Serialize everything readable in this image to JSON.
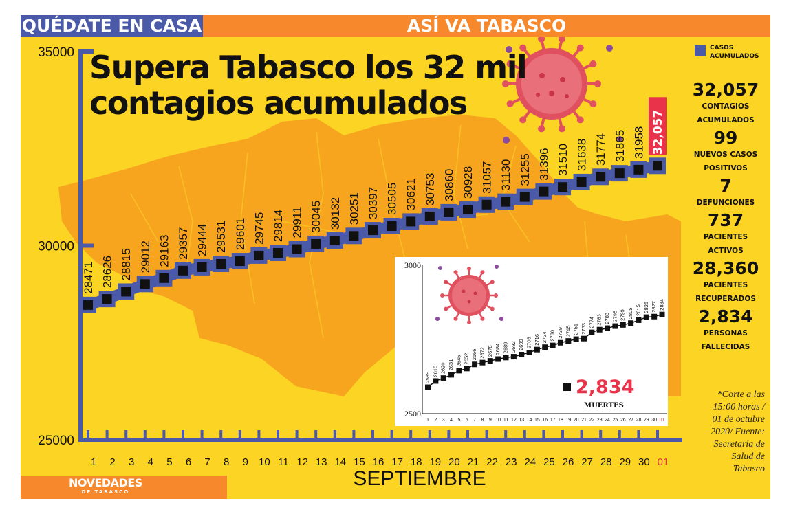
{
  "banner": {
    "left": "QUÉDATE EN CASA",
    "right": "ASÍ VA TABASCO"
  },
  "headline": "Supera Tabasco los 32 mil contagios acumulados",
  "legend": {
    "label_line1": "CASOS",
    "label_line2": "ACUMULADOS",
    "color": "#4a5aa8"
  },
  "stats": [
    {
      "value": "32,057",
      "label": "CONTAGIOS ACUMULADOS"
    },
    {
      "value": "99",
      "label": "NUEVOS CASOS POSITIVOS"
    },
    {
      "value": "7",
      "label": "DEFUNCIONES"
    },
    {
      "value": "737",
      "label": "PACIENTES ACTIVOS"
    },
    {
      "value": "28,360",
      "label": "PACIENTES RECUPERADOS"
    },
    {
      "value": "2,834",
      "label": "PERSONAS FALLECIDAS"
    }
  ],
  "footnote": "*Corte a las 15:00 horas / 01 de octubre 2020/ Fuente: Secretaría de Salud de Tabasco",
  "month": "SEPTIEMBRE",
  "logo": {
    "name": "NOVEDADES",
    "sub": "DE TABASCO"
  },
  "colors": {
    "background": "#fcd424",
    "map": "#f7a51f",
    "axis": "#4a5aa8",
    "banner_orange": "#f7892c",
    "highlight": "#e8334a",
    "virus": "#e0505e"
  },
  "chart_data": [
    {
      "type": "line",
      "categories": [
        "1",
        "2",
        "3",
        "4",
        "5",
        "6",
        "7",
        "8",
        "9",
        "10",
        "11",
        "12",
        "13",
        "14",
        "15",
        "16",
        "17",
        "18",
        "19",
        "20",
        "21",
        "22",
        "23",
        "24",
        "25",
        "26",
        "27",
        "28",
        "29",
        "30",
        "01"
      ],
      "series": [
        {
          "name": "CASOS ACUMULADOS",
          "values": [
            28471,
            28626,
            28815,
            29012,
            29163,
            29357,
            29444,
            29531,
            29601,
            29745,
            29814,
            29911,
            30045,
            30132,
            30251,
            30397,
            30505,
            30621,
            30753,
            30860,
            30928,
            31057,
            31130,
            31255,
            31396,
            31510,
            31638,
            31774,
            31865,
            31958,
            32057
          ]
        }
      ],
      "data_labels": [
        "28471",
        "28626",
        "28815",
        "29012",
        "29163",
        "29357",
        "29444",
        "29531",
        "29601",
        "29745",
        "29814",
        "29911",
        "30045",
        "30132",
        "30251",
        "30397",
        "30505",
        "30621",
        "30753",
        "30860",
        "30928",
        "31057",
        "31130",
        "31255",
        "31396",
        "31510",
        "31638",
        "31774",
        "31865",
        "31958",
        "32,057"
      ],
      "yticks": [
        "25000",
        "30000",
        "35000"
      ],
      "ylim": [
        25000,
        35000
      ],
      "xlabel": "SEPTIEMBRE",
      "highlight_last": true
    },
    {
      "type": "line",
      "categories": [
        "1",
        "2",
        "3",
        "4",
        "5",
        "6",
        "7",
        "8",
        "9",
        "10",
        "11",
        "12",
        "13",
        "14",
        "15",
        "16",
        "17",
        "18",
        "19",
        "20",
        "21",
        "22",
        "23",
        "24",
        "25",
        "26",
        "27",
        "28",
        "29",
        "30",
        "01"
      ],
      "series": [
        {
          "name": "MUERTES",
          "values": [
            2589,
            2610,
            2620,
            2631,
            2645,
            2652,
            2666,
            2672,
            2678,
            2684,
            2689,
            2692,
            2699,
            2706,
            2716,
            2724,
            2730,
            2739,
            2745,
            2751,
            2753,
            2774,
            2783,
            2788,
            2795,
            2799,
            2805,
            2815,
            2825,
            2827,
            2834
          ]
        }
      ],
      "yticks": [
        "2500",
        "3000"
      ],
      "ylim": [
        2500,
        3000
      ],
      "legend_value": "2,834",
      "legend_label": "MUERTES"
    }
  ]
}
